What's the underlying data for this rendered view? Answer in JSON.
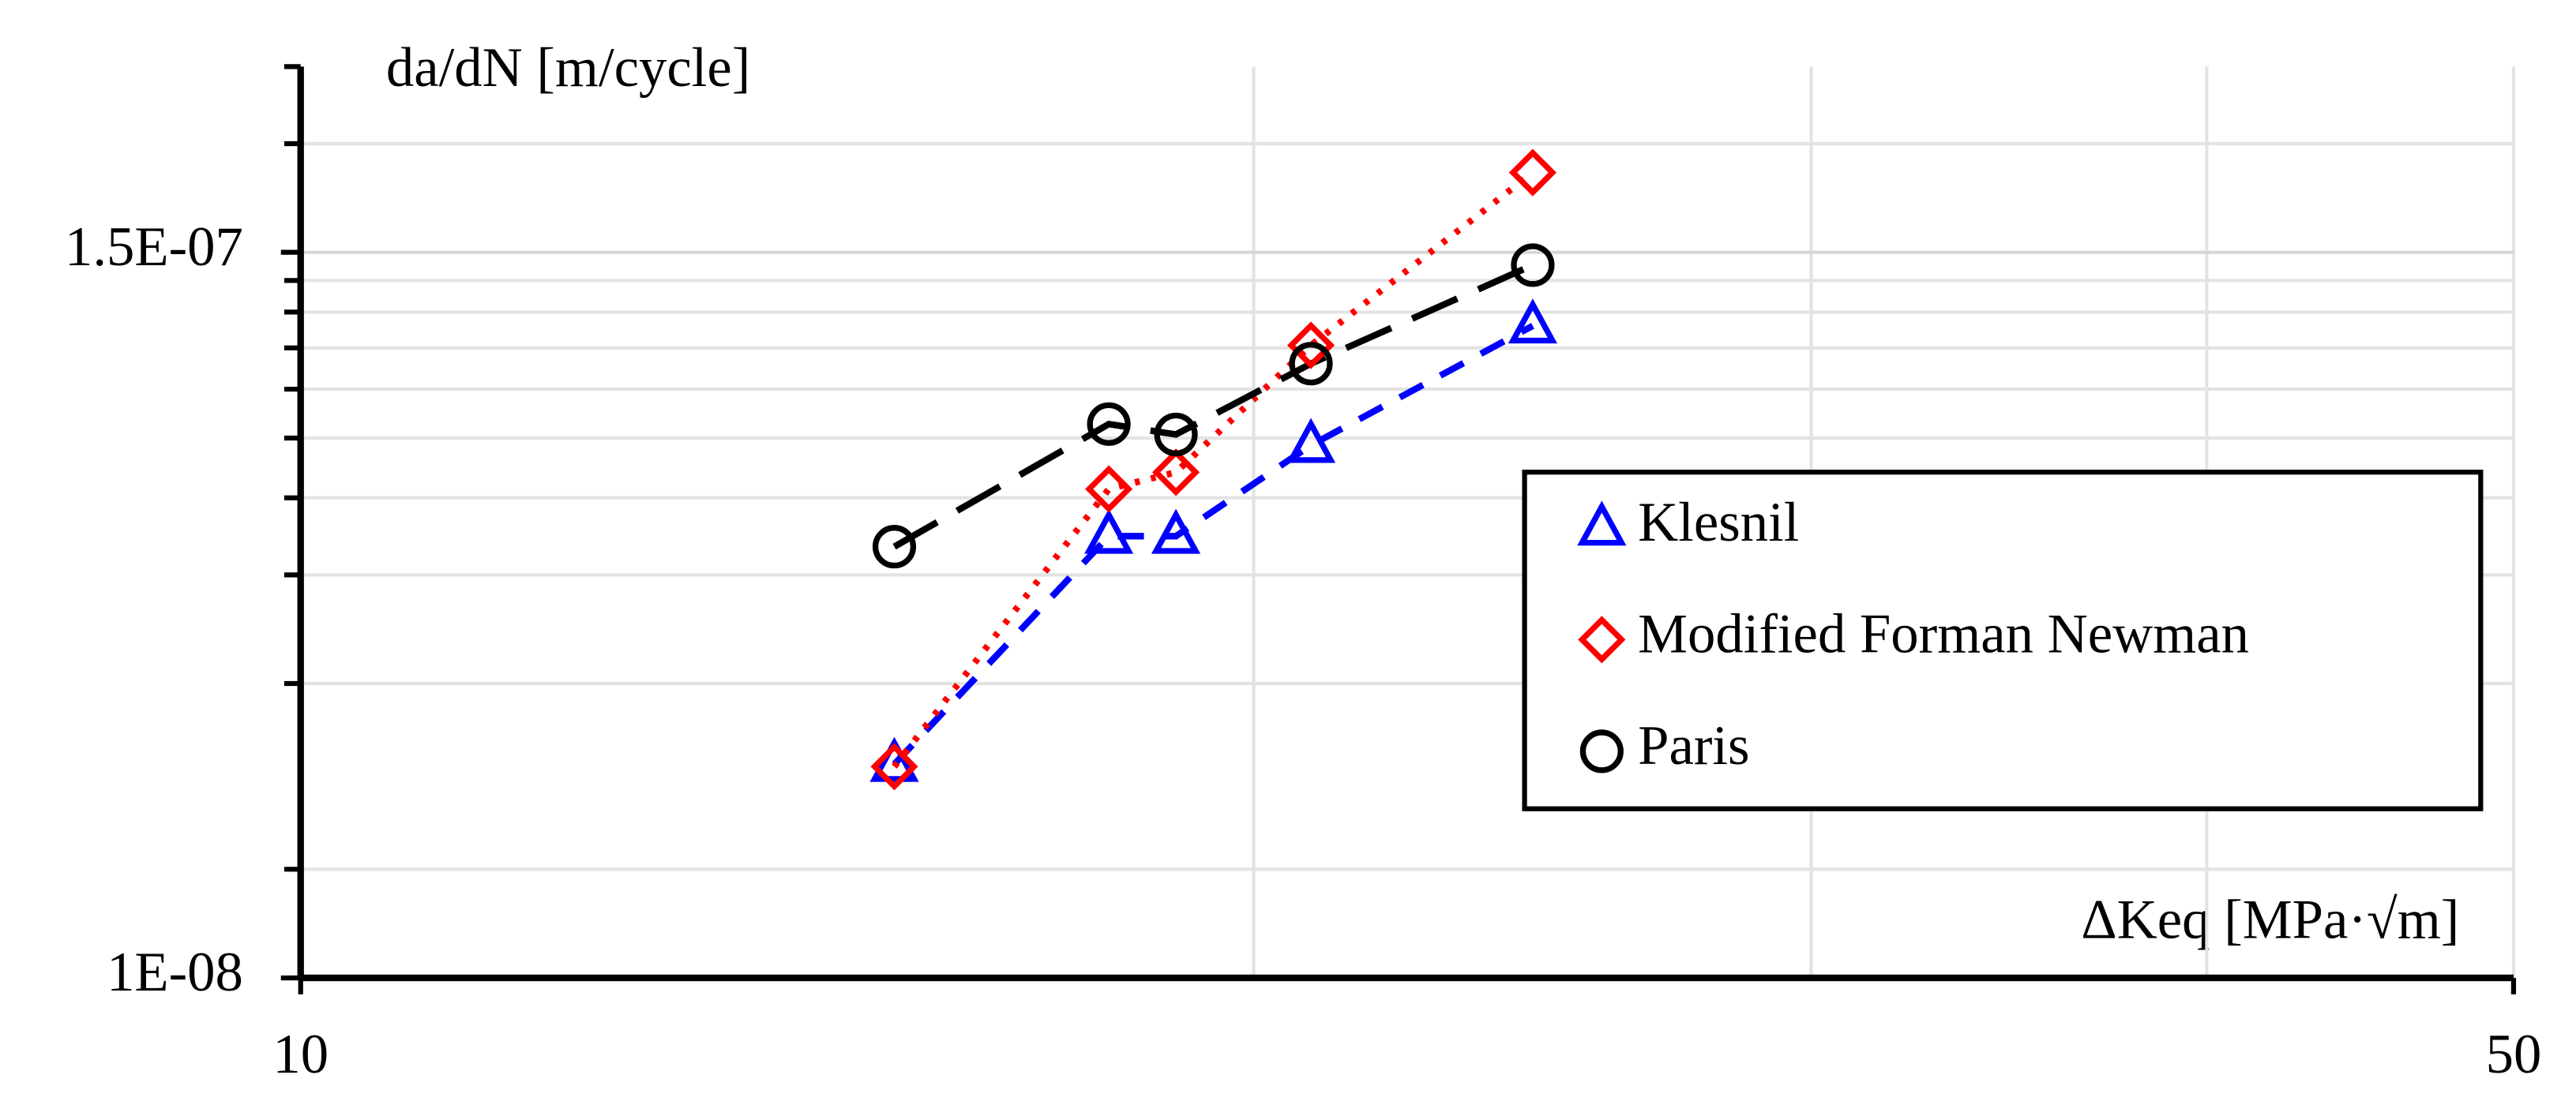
{
  "chart_data": {
    "type": "scatter",
    "y_axis_title": "da/dN [m/cycle]",
    "x_axis_title": "ΔKeq [MPa·√m]",
    "log_x": true,
    "log_y": true,
    "grid": true,
    "legend_position": "right",
    "xlim": [
      10,
      50
    ],
    "xticks": [
      10,
      50
    ],
    "x_minor_ticks": [
      20,
      30,
      40
    ],
    "ylim": [
      1e-08,
      3e-07
    ],
    "yticks": [
      {
        "value": 1e-08,
        "label": "1E-08"
      },
      {
        "value": 1.5e-07,
        "label": "1.5E-07"
      }
    ],
    "y_minor_ticks": [
      1.5e-08,
      3e-08,
      4.5e-08,
      6e-08,
      7.5e-08,
      9e-08,
      1.05e-07,
      1.2e-07,
      1.35e-07,
      2.25e-07
    ],
    "x": [
      15.4,
      18.0,
      18.9,
      20.85,
      24.5
    ],
    "series": [
      {
        "name": "Klesnil",
        "color": "#0000ff",
        "marker": "triangle",
        "line": "dashed",
        "values": [
          2.22e-08,
          5.2e-08,
          5.2e-08,
          7.3e-08,
          1.14e-07
        ]
      },
      {
        "name": "Modified Forman Newman",
        "color": "#ff0000",
        "marker": "diamond",
        "line": "dotted",
        "values": [
          2.2e-08,
          6.2e-08,
          6.6e-08,
          1.06e-07,
          2.02e-07
        ]
      },
      {
        "name": "Paris",
        "color": "#000000",
        "marker": "circle",
        "line": "longdash",
        "values": [
          5e-08,
          7.9e-08,
          7.6e-08,
          9.9e-08,
          1.43e-07
        ]
      }
    ]
  }
}
